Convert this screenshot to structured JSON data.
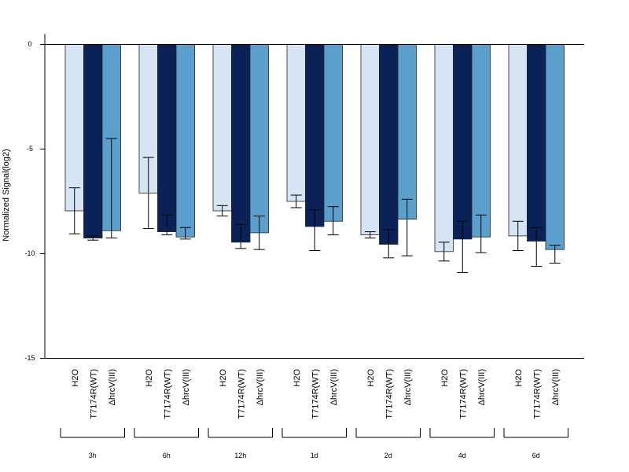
{
  "chart_data": {
    "type": "bar",
    "ylabel": "Normalized Signal(log2)",
    "ylim": [
      -15,
      0.5
    ],
    "yticks": [
      "0",
      "-5",
      "-10",
      "-15"
    ],
    "groups": [
      "3h",
      "6h",
      "12h",
      "1d",
      "2d",
      "4d",
      "6d"
    ],
    "series": [
      {
        "name": "H2O",
        "color": "#d6e5f4",
        "values": [
          -7.95,
          -7.1,
          -7.95,
          -7.5,
          -9.1,
          -9.9,
          -9.15
        ],
        "err_lo": [
          -9.05,
          -8.8,
          -8.2,
          -7.8,
          -9.25,
          -10.35,
          -9.85
        ],
        "err_hi": [
          -6.85,
          -5.4,
          -7.7,
          -7.2,
          -8.95,
          -9.45,
          -8.45
        ]
      },
      {
        "name": "T7174R(WT)",
        "color": "#0a2257",
        "values": [
          -9.25,
          -8.95,
          -9.45,
          -8.7,
          -9.55,
          -9.3,
          -9.4
        ],
        "err_lo": [
          -9.35,
          -9.1,
          -9.75,
          -9.85,
          -10.2,
          -10.9,
          -10.6
        ],
        "err_hi": [
          -9.15,
          -8.15,
          -8.6,
          -7.9,
          -8.85,
          -8.45,
          -8.75
        ]
      },
      {
        "name": "ΔhrcV(III)",
        "color": "#5b9fcd",
        "values": [
          -8.9,
          -9.2,
          -9.0,
          -8.45,
          -8.35,
          -9.2,
          -9.8
        ],
        "err_lo": [
          -9.25,
          -9.3,
          -9.8,
          -9.1,
          -10.1,
          -9.95,
          -10.45
        ],
        "err_hi": [
          -4.5,
          -8.75,
          -8.2,
          -7.75,
          -7.4,
          -8.15,
          -9.6
        ]
      }
    ]
  }
}
